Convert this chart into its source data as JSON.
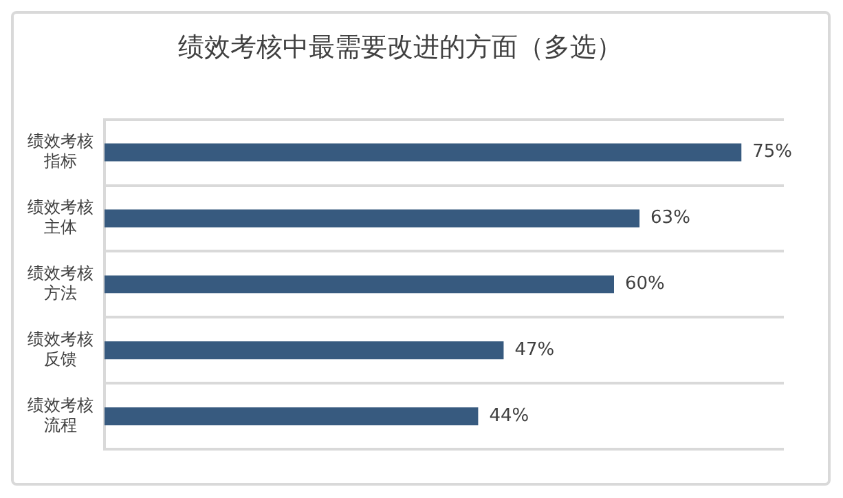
{
  "chart_data": {
    "type": "bar",
    "orientation": "horizontal",
    "title": "绩效考核中最需要改进的方面（多选）",
    "categories": [
      "绩效考核指标",
      "绩效考核主体",
      "绩效考核方法",
      "绩效考核反馈",
      "绩效考核流程"
    ],
    "values": [
      75,
      63,
      60,
      47,
      44
    ],
    "value_labels": [
      "75%",
      "63%",
      "60%",
      "47%",
      "44%"
    ],
    "color": "#375a7f",
    "tick_labels": "y",
    "grid": "y",
    "legend": false
  }
}
